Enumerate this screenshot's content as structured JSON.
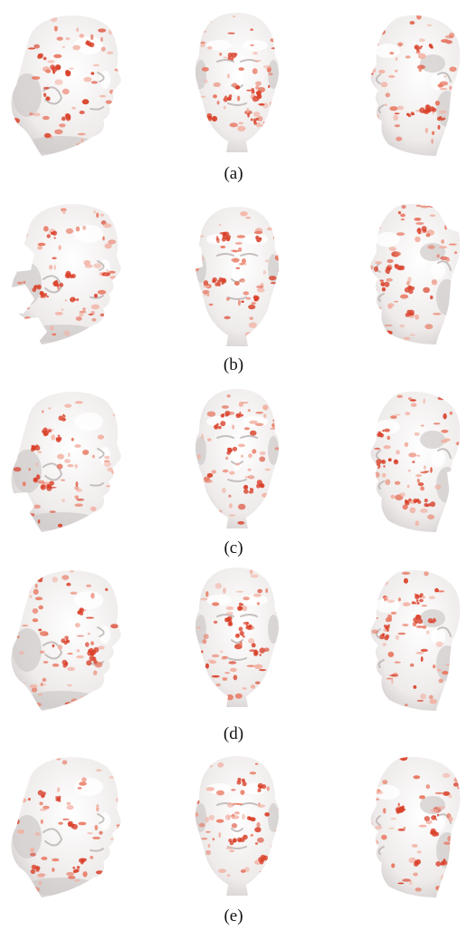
{
  "figure": {
    "panels": [
      {
        "label": "(a)",
        "variant": "full"
      },
      {
        "label": "(b)",
        "variant": "holes"
      },
      {
        "label": "(c)",
        "variant": "partial"
      },
      {
        "label": "(d)",
        "variant": "full"
      },
      {
        "label": "(e)",
        "variant": "full"
      }
    ],
    "views": [
      "left-profile",
      "frontal",
      "right-profile"
    ],
    "colors": {
      "skin": "#eeebea",
      "shade": "#cfcac9",
      "highlight": "#ffffff",
      "heat_strong": "#d9412a",
      "heat_mid": "#e8765f",
      "heat_light": "#f2b0a2"
    }
  }
}
